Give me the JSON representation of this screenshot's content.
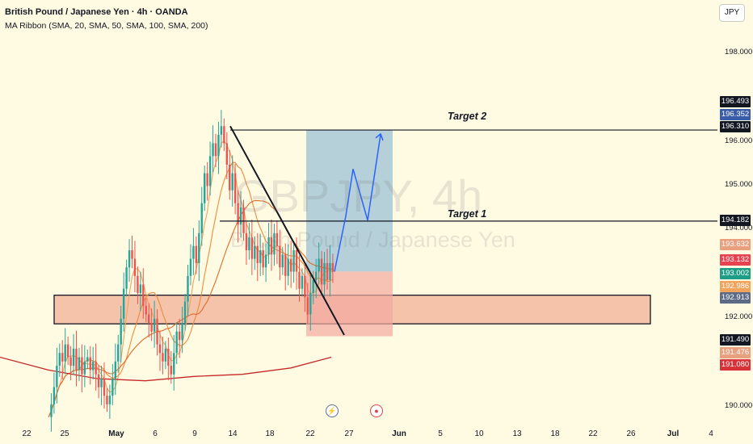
{
  "header": {
    "title": "British Pound / Japanese Yen · 4h · OANDA",
    "indicator": "MA Ribbon (SMA, 20, SMA, 50, SMA, 100, SMA, 200)"
  },
  "currency": "JPY",
  "watermark": {
    "symbol": "GBPJPY, 4h",
    "name": "British Pound / Japanese Yen"
  },
  "price_axis": {
    "ticks": [
      "198.000",
      "196.000",
      "195.000",
      "194.000",
      "192.000",
      "190.000"
    ]
  },
  "price_labels": [
    {
      "value": "196.493",
      "bg": "#131722"
    },
    {
      "value": "196.352",
      "bg": "#3b5ca8"
    },
    {
      "value": "196.310",
      "bg": "#131722"
    },
    {
      "value": "194.182",
      "bg": "#131722"
    },
    {
      "value": "193.632",
      "bg": "#e9a07f"
    },
    {
      "value": "193.132",
      "bg": "#e8414f"
    },
    {
      "value": "193.002",
      "bg": "#1e9e86"
    },
    {
      "value": "192.986",
      "bg": "#f2a35c"
    },
    {
      "value": "192.913",
      "bg": "#5d6b86"
    },
    {
      "value": "191.490",
      "bg": "#131722"
    },
    {
      "value": "191.476",
      "bg": "#e9a07f"
    },
    {
      "value": "191.080",
      "bg": "#d8333a"
    }
  ],
  "date_axis": [
    {
      "label": "22",
      "bold": false
    },
    {
      "label": "25",
      "bold": false
    },
    {
      "label": "May",
      "bold": true
    },
    {
      "label": "6",
      "bold": false
    },
    {
      "label": "9",
      "bold": false
    },
    {
      "label": "14",
      "bold": false
    },
    {
      "label": "18",
      "bold": false
    },
    {
      "label": "22",
      "bold": false
    },
    {
      "label": "27",
      "bold": false
    },
    {
      "label": "Jun",
      "bold": true
    },
    {
      "label": "5",
      "bold": false
    },
    {
      "label": "10",
      "bold": false
    },
    {
      "label": "13",
      "bold": false
    },
    {
      "label": "18",
      "bold": false
    },
    {
      "label": "22",
      "bold": false
    },
    {
      "label": "26",
      "bold": false
    },
    {
      "label": "Jul",
      "bold": true
    },
    {
      "label": "4",
      "bold": false
    }
  ],
  "targets": {
    "target1_label": "Target 1",
    "target2_label": "Target 2"
  },
  "colors": {
    "background": "#fffbe3",
    "candle_up": "#26a69a",
    "candle_down": "#ef5350",
    "ma_20": "#f2a35c",
    "ma_50": "#f08a3a",
    "ma_100": "#e06b2b",
    "ma_200": "#c62828",
    "profit_zone": "#9cc2d6",
    "loss_zone": "#f4a9a0",
    "demand_zone": "#f2b8a0"
  },
  "icons": {
    "replay": "lightning-icon",
    "alert": "target-icon"
  },
  "chart_data": {
    "type": "candlestick",
    "symbol": "GBPJPY",
    "timeframe": "4h",
    "ylim": [
      189.6,
      198.8
    ],
    "x_range": [
      "Apr 21",
      "Jul 5"
    ],
    "targets": [
      {
        "label": "Target 1",
        "price": 194.182
      },
      {
        "label": "Target 2",
        "price": 196.31
      }
    ],
    "position": {
      "entry": 193.002,
      "target": 196.31,
      "stop": 191.49
    },
    "demand_zone": {
      "low": 191.78,
      "high": 192.45
    },
    "trendline": {
      "start": {
        "date": "May 13",
        "price": 196.4
      },
      "end": {
        "date": "May 23",
        "price": 191.52
      }
    },
    "projection": [
      193.0,
      194.3,
      195.4,
      194.2,
      196.2
    ],
    "close_path": [
      189.6,
      189.9,
      190.3,
      190.8,
      191.1,
      190.9,
      191.3,
      191.0,
      190.8,
      191.2,
      190.7,
      191.0,
      190.6,
      190.9,
      191.0,
      190.7,
      190.9,
      190.6,
      190.3,
      190.5,
      190.1,
      189.9,
      190.1,
      190.5,
      190.9,
      191.3,
      191.9,
      192.6,
      193.1,
      193.5,
      193.3,
      192.9,
      192.5,
      192.7,
      192.2,
      192.0,
      191.8,
      191.6,
      191.9,
      191.3,
      191.1,
      190.9,
      191.2,
      190.8,
      190.6,
      191.1,
      191.6,
      191.4,
      191.8,
      192.3,
      192.9,
      193.3,
      193.6,
      193.2,
      193.9,
      194.6,
      195.3,
      195.0,
      195.7,
      196.0,
      195.7,
      196.2,
      196.4,
      196.0,
      195.5,
      194.9,
      195.3,
      194.6,
      194.1,
      194.5,
      193.9,
      193.5,
      193.8,
      193.3,
      193.6,
      193.2,
      193.5,
      193.1,
      193.4,
      193.8,
      193.4,
      193.9,
      193.6,
      193.1,
      193.4,
      192.9,
      193.3,
      193.0,
      193.5,
      193.0,
      192.6,
      192.9,
      192.4,
      192.0,
      192.5,
      192.8,
      193.0,
      193.3,
      192.7,
      193.2,
      192.8,
      193.2,
      193.0
    ]
  }
}
